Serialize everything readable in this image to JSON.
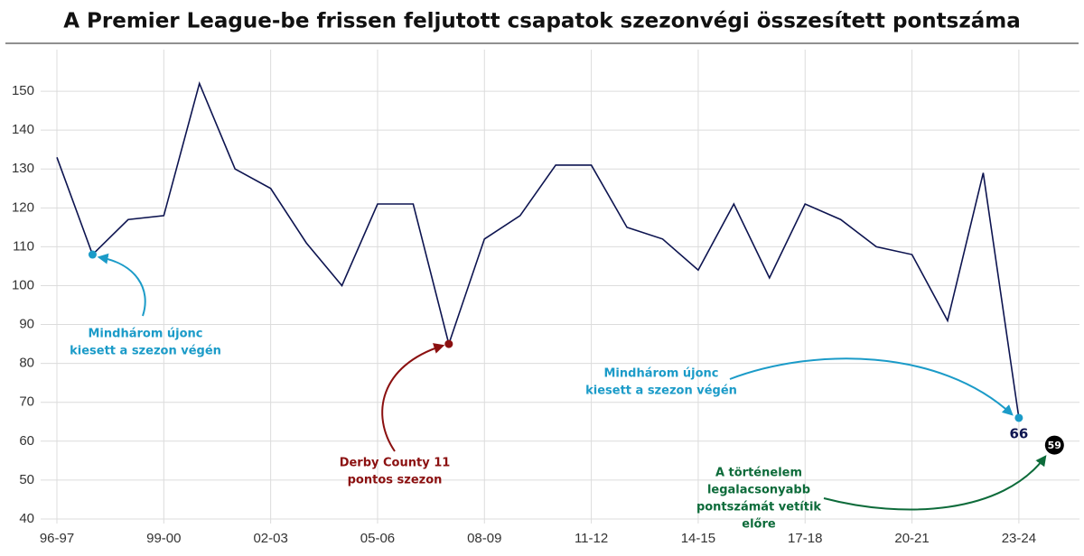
{
  "chart_data": {
    "type": "line",
    "title": "A Premier League-be frissen feljutott csapatok szezonvégi összesített pontszáma",
    "categories": [
      "96-97",
      null,
      null,
      "99-00",
      null,
      null,
      "02-03",
      null,
      null,
      "05-06",
      null,
      null,
      "08-09",
      null,
      null,
      "11-12",
      null,
      null,
      "14-15",
      null,
      null,
      "17-18",
      null,
      null,
      "20-21",
      null,
      null,
      "23-24",
      null
    ],
    "series": [
      {
        "color": "#0d1450",
        "values": [
          133,
          108,
          117,
          118,
          152,
          130,
          125,
          111,
          100,
          121,
          121,
          85,
          112,
          118,
          131,
          131,
          115,
          112,
          104,
          121,
          102,
          121,
          117,
          110,
          108,
          91,
          129,
          66,
          null
        ]
      },
      {
        "color": "#000000",
        "values": [
          null,
          null,
          null,
          null,
          null,
          null,
          null,
          null,
          null,
          null,
          null,
          null,
          null,
          null,
          null,
          null,
          null,
          null,
          null,
          null,
          null,
          null,
          null,
          null,
          null,
          null,
          null,
          null,
          59
        ]
      }
    ],
    "ylim": [
      35,
      160
    ],
    "yticks": [
      40,
      50,
      60,
      70,
      80,
      90,
      100,
      110,
      120,
      130,
      140,
      150
    ],
    "grid": true,
    "annotations": [
      {
        "lines": [
          "Mindhárom újonc",
          "kiesett a szezon végén"
        ],
        "color": "#1b9bc8"
      },
      {
        "lines": [
          "Derby County 11",
          "pontos szezon"
        ],
        "color": "#8b1010"
      },
      {
        "lines": [
          "Mindhárom újonc",
          "kiesett a szezon végén"
        ],
        "color": "#1b9bc8"
      },
      {
        "lines": [
          "A történelem",
          "legalacsonyabb",
          "pontszámát vetítik",
          "előre"
        ],
        "color": "#0d6b3a"
      }
    ]
  }
}
